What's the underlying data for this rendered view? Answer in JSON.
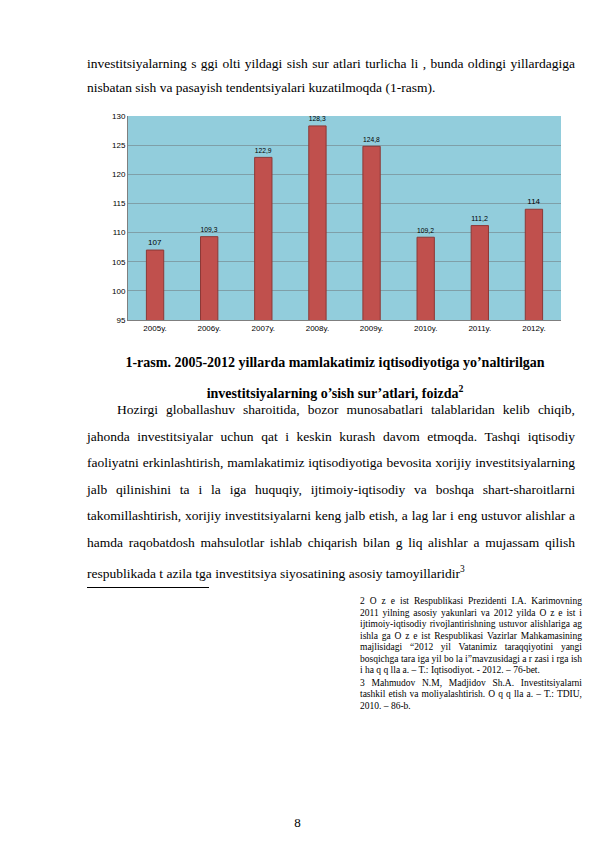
{
  "top_text": "investitsiyalarning s    ggi olti yildagi    sish sur atlari turlicha      li , bunda oldingi yillardagiga nisbatan   sish va pasayish tendentsiyalari kuzatilmoqda (1-rasm).",
  "chart_data": {
    "type": "bar",
    "categories": [
      "2005y.",
      "2006y.",
      "2007y.",
      "2008y.",
      "2009y.",
      "2010y.",
      "2011y.",
      "2012y."
    ],
    "values": [
      107,
      109.3,
      122.9,
      128.3,
      124.8,
      109.2,
      111.2,
      114
    ],
    "value_labels": [
      "107",
      "109,3",
      "122,9",
      "128,3",
      "124,8",
      "109,2",
      "111,2",
      "114"
    ],
    "color": "#c0504d",
    "ylim": [
      95,
      130
    ],
    "yticks": [
      95,
      100,
      105,
      110,
      115,
      120,
      125,
      130
    ],
    "grid": true,
    "data_labels": true
  },
  "caption": {
    "text": "1-rasm. 2005-2012 yillarda mamlakatimiz iqtisodiyotiga yo’naltirilgan investitsiyalarning o’sish sur’atlari, foizda",
    "sup": "2"
  },
  "paragraph": {
    "text": "Hozirgi globallashuv sharoitida, bozor munosabatlari talablaridan kelib chiqib, jahonda investitsiyalar uchun qat i   keskin kurash davom etmoqda. Tashqi iqtisodiy faoliyatni erkinlashtirish, mamlakatimiz iqtisodiyotiga bevosita xorijiy investitsiyalarning jalb qilinishini ta   i la   iga  huquqiy, ijtimoiy-iqtisodiy va boshqa shart-sharoitlarni takomillashtirish, xorijiy investitsiyalarni keng jalb etish,  a lag lar i eng ustuvor     alishlar a hamda raqobatdosh mahsulotlar ishlab chiqarish bilan   g liq alishlar a mujassam qilish respublikada    t azila  tga  investitsiya siyosatining asosiy tamoyillaridir",
    "sup": "3"
  },
  "footnotes": [
    "2  O  z  e  ist      Respublikasi  Prezidenti  I.A. Karimovning 2011 yilning asosiy yakunlari va 2012  yilda  O  z  e  ist       i  ijtimoiy-iqtisodiy rivojlantirishning ustuvor      alishlariga  ag ishla ga      O  z  e  ist       Respublikasi  Vazirlar Mahkamasining majlisidagi “2012 yil Vatanimiz taraqqiyotini yangi bosqichga     tara iga  yil bo la i”mavzusidagi  a r zasi i   rga ish i ha   q   q  lla  a. – T.: Iqtisodiyot. - 2012. – 76-bet.",
    "3    Mahmudov    N.M,    Madjidov    Sh.A. Investitsiyalarni tashkil etish va moliyalashtirish. O q  q  lla  a. – T.: TDIU, 2010. – 86-b."
  ],
  "page_number": "8"
}
